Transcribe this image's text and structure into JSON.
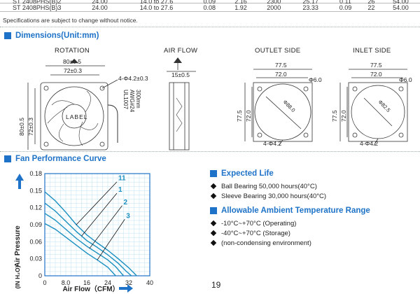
{
  "spec_table": {
    "rows": [
      {
        "cut": true,
        "cells": [
          "ST 2408PHS(B)2",
          "24.00",
          "14.0 to 27.6",
          "0.09",
          "2.16",
          "2300",
          "25.17",
          "0.11",
          "26",
          "54.00"
        ]
      },
      {
        "cut": false,
        "cells": [
          "ST 2408PHS(B)3",
          "24.00",
          "14.0 to 27.6",
          "0.08",
          "1.92",
          "2000",
          "23.33",
          "0.09",
          "22",
          "54.00"
        ]
      }
    ],
    "note": "Specifications are subject to change without notice."
  },
  "dimensions": {
    "title": "Dimensions(Unit:mm)",
    "views": {
      "rotation": {
        "label": "ROTATION",
        "top_outer": "80±0.5",
        "top_inner": "72±0.3",
        "hole": "4-Φ4.2±0.3",
        "left_outer": "80±0.5",
        "left_inner": "72±0.3",
        "center": "LABEL",
        "wire": [
          "UL1007",
          "AWG#24",
          "300mm"
        ]
      },
      "airflow": {
        "label": "AIR FLOW",
        "thickness": "15±0.5"
      },
      "outlet": {
        "label": "OUTLET SIDE",
        "outer": "77.5",
        "inner": "72.0",
        "hole": "Φ6.0",
        "side_outer": "77.5",
        "side_inner": "72.0",
        "dia": "Φ88.0",
        "holes": "4-Φ4.2"
      },
      "inlet": {
        "label": "INLET SIDE",
        "outer": "77.5",
        "inner": "72.0",
        "hole": "Φ6.0",
        "side_outer": "77.5",
        "side_inner": "72.0",
        "dia": "Φ82.5",
        "holes": "4-Φ4.2"
      }
    }
  },
  "fan_curve": {
    "title": "Fan Performance Curve",
    "chart_data": {
      "type": "line",
      "xlabel": "Air Flow（CFM）",
      "ylabel": "Air Pressure",
      "yunit": "(IN H₂O)",
      "xlim": [
        0,
        40
      ],
      "ylim": [
        0,
        0.18
      ],
      "xticks": [
        "0",
        "8.0",
        "16",
        "24",
        "32",
        "40"
      ],
      "yticks": [
        "0",
        "0.03",
        "0.06",
        "0.09",
        "0.12",
        "0.15",
        "0.18"
      ],
      "grid": true,
      "series": [
        {
          "name": "11",
          "points": [
            [
              0,
              0.148
            ],
            [
              4,
              0.132
            ],
            [
              8,
              0.112
            ],
            [
              12,
              0.09
            ],
            [
              16,
              0.072
            ],
            [
              20,
              0.058
            ],
            [
              24,
              0.045
            ],
            [
              28,
              0.03
            ],
            [
              32,
              0.014
            ],
            [
              35,
              0.0
            ]
          ]
        },
        {
          "name": "1",
          "points": [
            [
              0,
              0.128
            ],
            [
              4,
              0.114
            ],
            [
              8,
              0.096
            ],
            [
              12,
              0.078
            ],
            [
              16,
              0.062
            ],
            [
              20,
              0.05
            ],
            [
              24,
              0.037
            ],
            [
              28,
              0.022
            ],
            [
              31,
              0.008
            ],
            [
              33,
              0.0
            ]
          ]
        },
        {
          "name": "2",
          "points": [
            [
              0,
              0.11
            ],
            [
              4,
              0.098
            ],
            [
              8,
              0.082
            ],
            [
              12,
              0.066
            ],
            [
              16,
              0.052
            ],
            [
              20,
              0.04
            ],
            [
              24,
              0.028
            ],
            [
              27,
              0.016
            ],
            [
              30,
              0.0
            ]
          ]
        },
        {
          "name": "3",
          "points": [
            [
              0,
              0.092
            ],
            [
              4,
              0.082
            ],
            [
              8,
              0.068
            ],
            [
              12,
              0.054
            ],
            [
              16,
              0.04
            ],
            [
              20,
              0.028
            ],
            [
              24,
              0.015
            ],
            [
              27,
              0.0
            ]
          ]
        }
      ],
      "colors": {
        "curve": "#1a8fc0",
        "grid": "#bfe3f0",
        "frame": "#1e73c8",
        "axis_arrow": "#1e73c8"
      }
    }
  },
  "info": {
    "expected_life": {
      "title": "Expected Life",
      "items": [
        "Ball Bearing 50,000 hours(40°C)",
        "Sleeve Bearing 30,000 hours(40°C)"
      ]
    },
    "ambient_temp": {
      "title": "Allowable Ambient Temperature Range",
      "items": [
        "-10°C~+70°C (Operating)",
        "-40°C~+70°C (Storage)",
        "(non-condensing environment)"
      ]
    }
  },
  "page_number": "19"
}
